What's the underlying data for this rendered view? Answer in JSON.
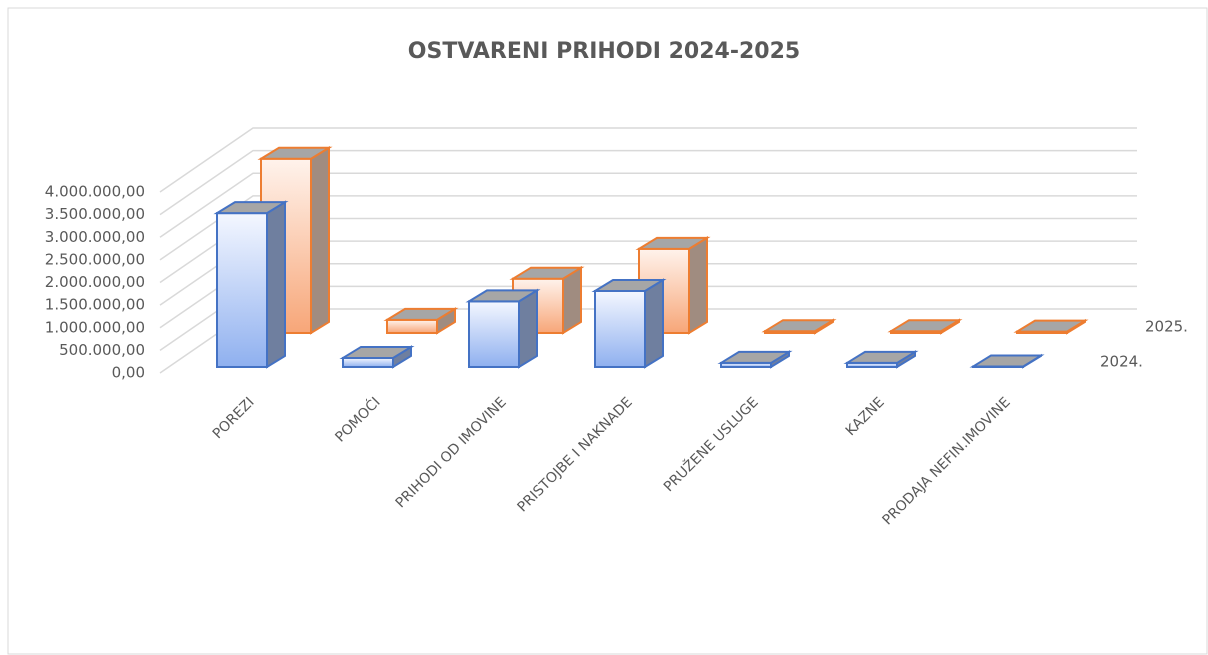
{
  "chart_data": {
    "type": "bar3d",
    "title": "OSTVARENI  PRIHODI 2024-2025",
    "categories": [
      "POREZI",
      "POMOĆI",
      "PRIHODI OD IMOVINE",
      "PRISTOJBE I NAKNADE",
      "PRUŽENE USLUGE",
      "KAZNE",
      "PRODAJA NEFIN.IMOVINE"
    ],
    "series": [
      {
        "name": "2024.",
        "color": "#4472c4",
        "values": [
          3400000,
          200000,
          1450000,
          1680000,
          90000,
          90000,
          10000
        ]
      },
      {
        "name": "2025.",
        "color": "#ed7d31",
        "values": [
          3850000,
          290000,
          1200000,
          1860000,
          40000,
          40000,
          30000
        ]
      }
    ],
    "ylim": [
      0,
      4000000
    ],
    "yticks": [
      {
        "value": 0,
        "label": "0,00"
      },
      {
        "value": 500000,
        "label": "500.000,00"
      },
      {
        "value": 1000000,
        "label": "1.000.000,00"
      },
      {
        "value": 1500000,
        "label": "1.500.000,00"
      },
      {
        "value": 2000000,
        "label": "2.000.000,00"
      },
      {
        "value": 2500000,
        "label": "2.500.000,00"
      },
      {
        "value": 3000000,
        "label": "3.000.000,00"
      },
      {
        "value": 3500000,
        "label": "3.500.000,00"
      },
      {
        "value": 4000000,
        "label": "4.000.000,00"
      }
    ],
    "grid": true
  }
}
